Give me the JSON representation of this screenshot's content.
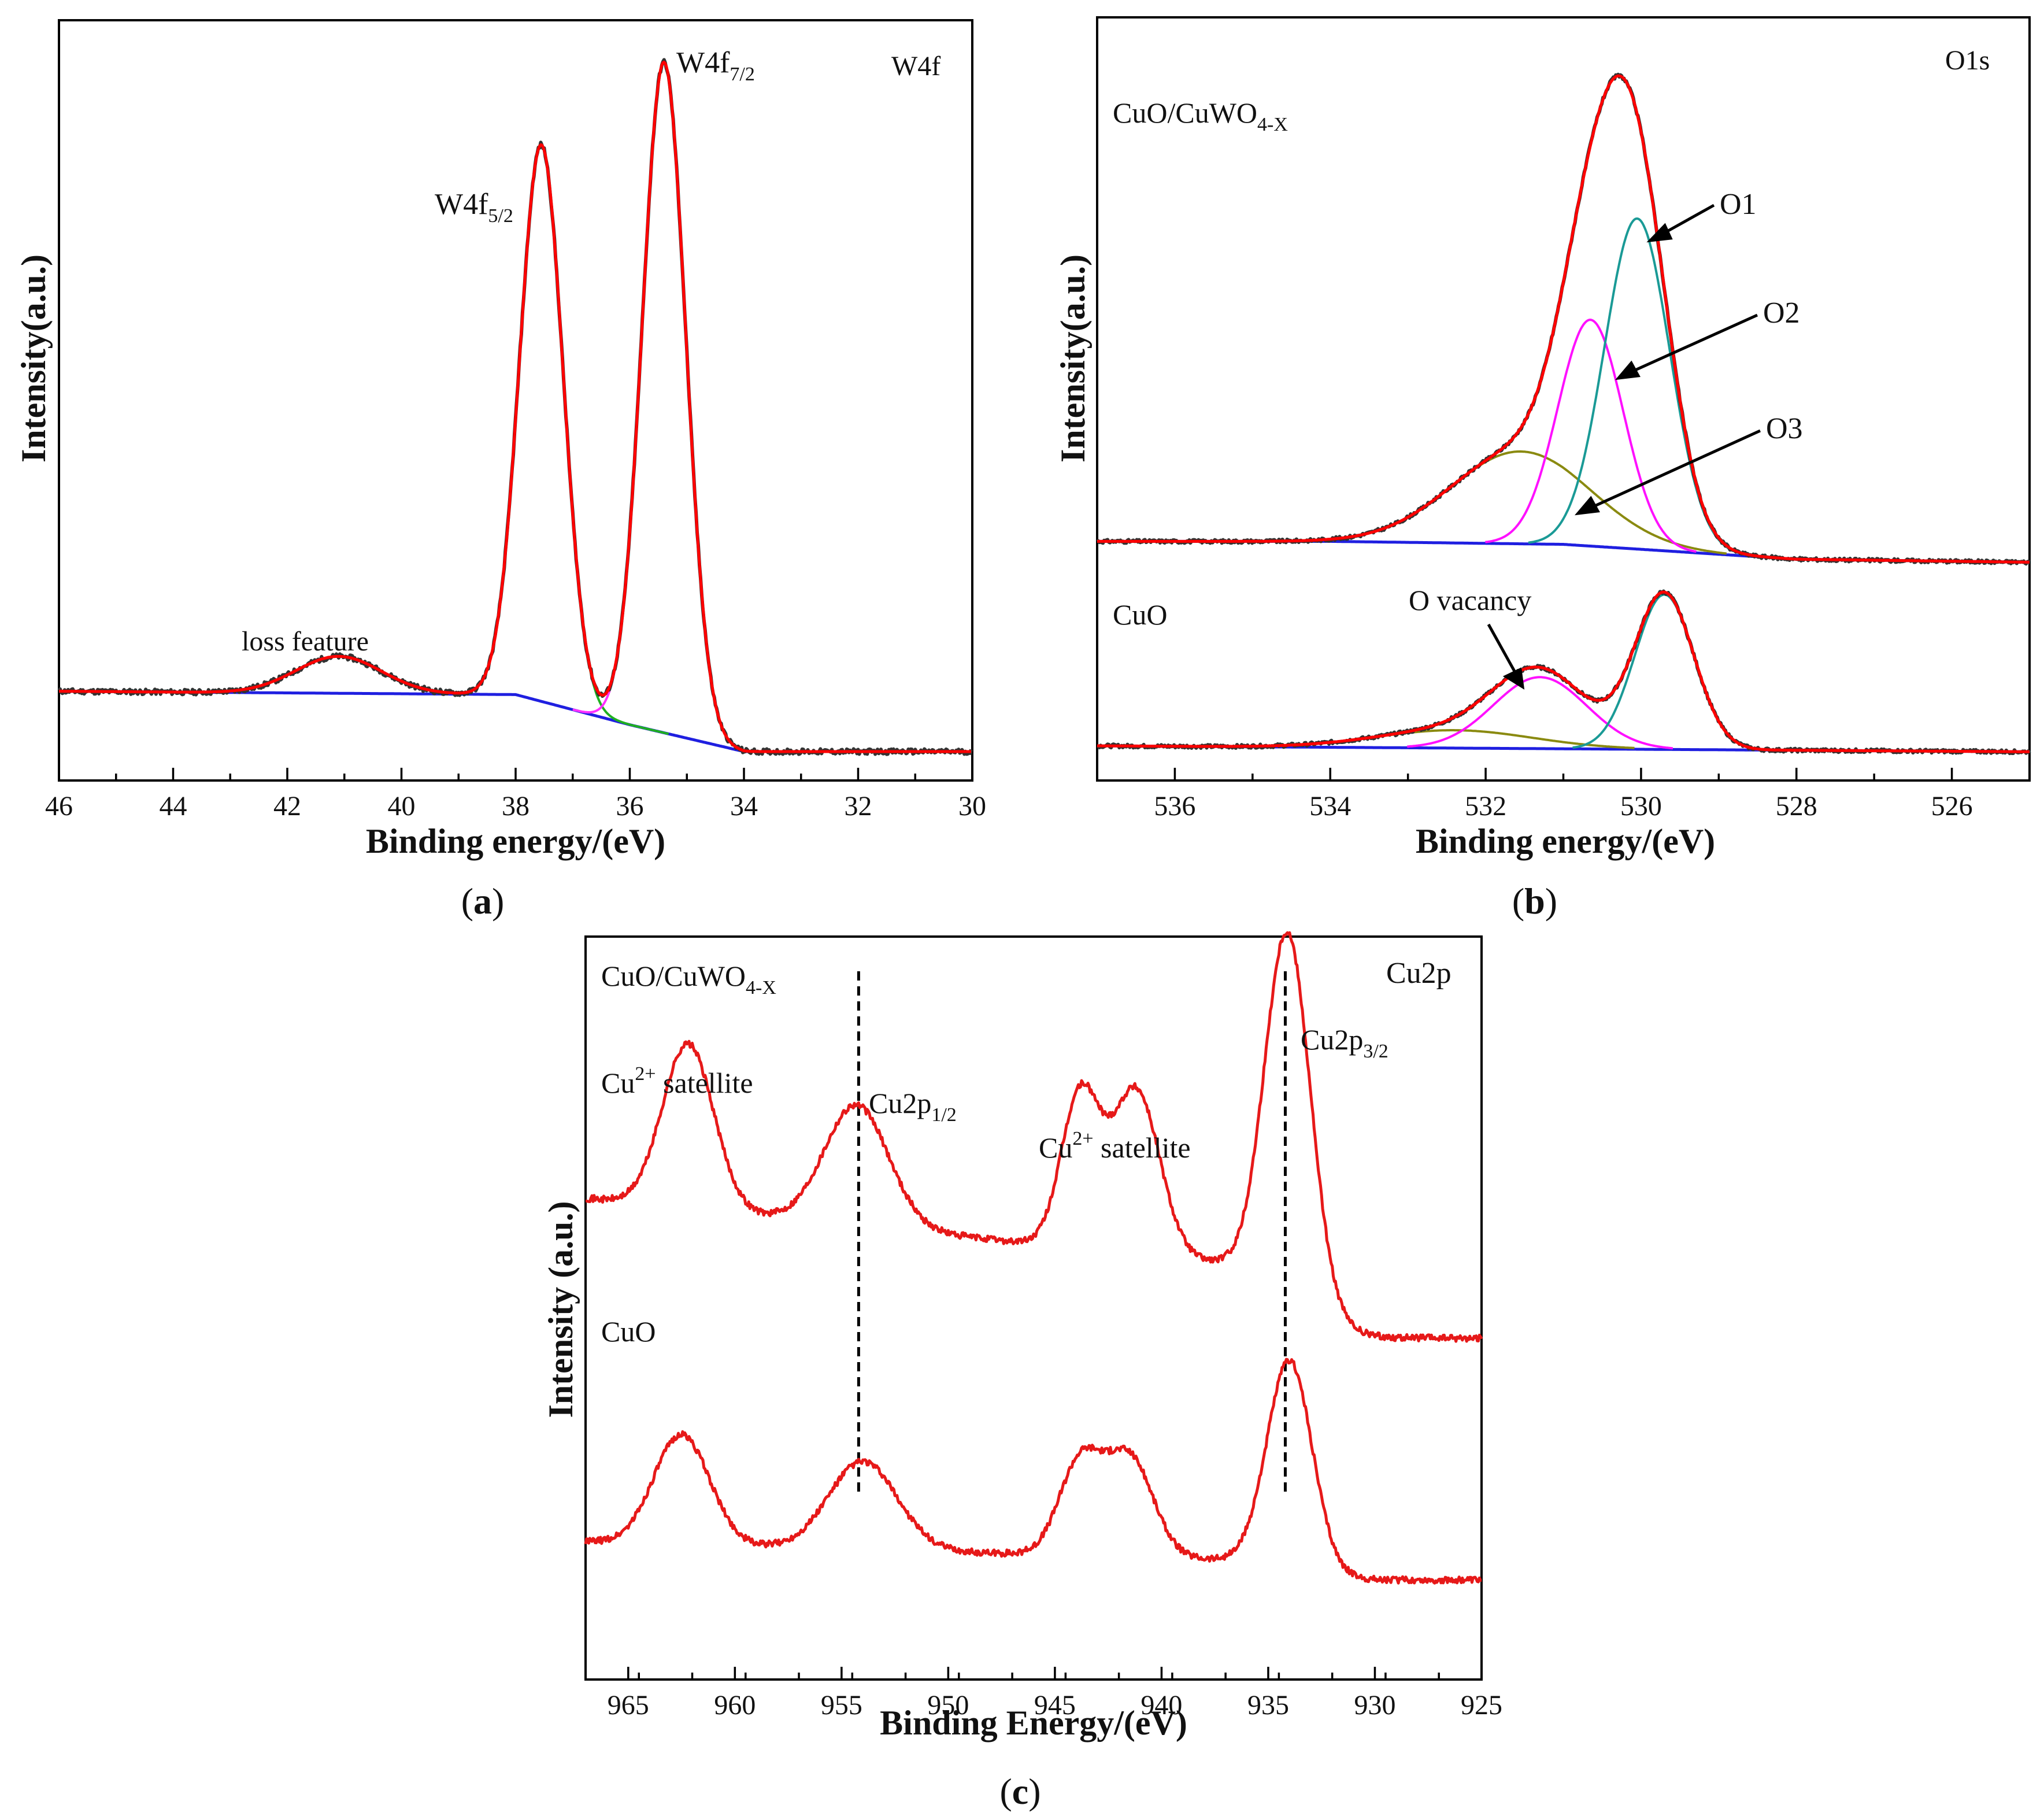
{
  "figure": {
    "panel_labels": [
      "a",
      "b",
      "c"
    ]
  },
  "colors": {
    "fit": "#ff0000",
    "raw": "#333333",
    "background": "#1f1fe0",
    "w_peak_52": "#20b020",
    "w_peak_72": "#ff30ff",
    "o1": "#1a9a96",
    "o2": "#ff10ff",
    "o3": "#8a8a10",
    "cu_line": "#e61919",
    "dash": "#000000"
  },
  "chart_data": [
    {
      "id": "a",
      "type": "line",
      "title": "W4f",
      "xlabel": "Binding energy/(eV)",
      "ylabel": "Intensity(a.u.)",
      "xlim": [
        46,
        30
      ],
      "ylim": [
        0,
        1
      ],
      "xticks": [
        46,
        44,
        42,
        40,
        38,
        36,
        34,
        32,
        30
      ],
      "annotations": {
        "peak_52_main": "W4f",
        "peak_52_sub": "5/2",
        "peak_72_main": "W4f",
        "peak_72_sub": "7/2",
        "loss": "loss feature"
      },
      "background": {
        "points": [
          [
            46,
            0.09
          ],
          [
            38,
            0.085
          ],
          [
            36,
            0.04
          ],
          [
            34,
            0.0
          ],
          [
            30,
            0.0
          ]
        ]
      },
      "peaks": {
        "loss_feature": {
          "center": 41.1,
          "height": 0.055,
          "sigma": 0.75
        },
        "w4f_5_2": {
          "center": 37.55,
          "height": 0.83,
          "sigma": 0.38
        },
        "w4f_7_2": {
          "center": 35.4,
          "height": 1.0,
          "sigma": 0.38
        }
      }
    },
    {
      "id": "b",
      "type": "line",
      "title": "O1s",
      "xlabel": "Binding energy/(eV)",
      "ylabel": "Intensity(a.u.)",
      "xlim": [
        537,
        525
      ],
      "ylim": [
        0,
        1
      ],
      "xticks": [
        536,
        534,
        532,
        530,
        528,
        526
      ],
      "series_labels": {
        "top_main": "CuO/CuWO",
        "top_sub": "4-X",
        "bottom": "CuO"
      },
      "annotations": {
        "o1": "O1",
        "o2": "O2",
        "o3": "O3",
        "vacancy": "O vacancy"
      },
      "spectra": [
        {
          "name": "CuO/CuWO4-X",
          "baseline": [
            [
              537,
              0.12
            ],
            [
              534,
              0.12
            ],
            [
              531,
              0.115
            ],
            [
              528,
              0.09
            ],
            [
              525,
              0.085
            ]
          ],
          "components": {
            "O1": {
              "center": 530.05,
              "height": 0.555,
              "sigma": 0.42
            },
            "O2": {
              "center": 530.65,
              "height": 0.38,
              "sigma": 0.42
            },
            "O3": {
              "center": 531.55,
              "height": 0.155,
              "sigma": 0.9
            }
          }
        },
        {
          "name": "CuO",
          "baseline": [
            [
              537,
              0.0
            ],
            [
              525,
              -0.01
            ]
          ],
          "components": {
            "O1": {
              "center": 529.7,
              "height": 0.26,
              "sigma": 0.38
            },
            "O2": {
              "center": 531.3,
              "height": 0.12,
              "sigma": 0.6
            },
            "O3": {
              "center": 532.4,
              "height": 0.03,
              "sigma": 1.0
            }
          }
        }
      ]
    },
    {
      "id": "c",
      "type": "line",
      "title": "Cu2p",
      "xlabel": "Binding Energy/(eV)",
      "ylabel": "Intensity (a.u.)",
      "xlim": [
        967,
        925
      ],
      "ylim": [
        0,
        1
      ],
      "xticks": [
        965,
        960,
        955,
        950,
        945,
        940,
        935,
        930,
        925
      ],
      "series_labels": {
        "top_main": "CuO/CuWO",
        "top_sub": "4-X",
        "bottom": "CuO"
      },
      "annotations": {
        "sat_left_main": "Cu",
        "sat_left_sup": "2+",
        "sat_left_rest": " satellite",
        "p12_main": "Cu2p",
        "p12_sub": "1/2",
        "sat_mid_main": "Cu",
        "sat_mid_sup": "2+",
        "sat_mid_rest": " satellite",
        "p32_main": "Cu2p",
        "p32_sub": "3/2"
      },
      "reference_lines": [
        954.2,
        934.2
      ],
      "spectra": [
        {
          "name": "CuO/CuWO4-X",
          "baseline_left": 0.6,
          "baseline_right": 0.09,
          "peaks": [
            {
              "center": 962.2,
              "height": 0.3,
              "sigma": 1.2
            },
            {
              "center": 954.3,
              "height": 0.22,
              "sigma": 1.5
            },
            {
              "center": 943.8,
              "height": 0.28,
              "sigma": 0.9
            },
            {
              "center": 941.2,
              "height": 0.3,
              "sigma": 1.1
            },
            {
              "center": 934.1,
              "height": 0.63,
              "sigma": 1.05
            }
          ]
        },
        {
          "name": "CuO",
          "baseline_left": 0.2,
          "baseline_right": 0.06,
          "peaks": [
            {
              "center": 962.5,
              "height": 0.2,
              "sigma": 1.3
            },
            {
              "center": 954.0,
              "height": 0.16,
              "sigma": 1.6
            },
            {
              "center": 943.8,
              "height": 0.17,
              "sigma": 1.0
            },
            {
              "center": 941.5,
              "height": 0.18,
              "sigma": 1.1
            },
            {
              "center": 934.0,
              "height": 0.37,
              "sigma": 1.05
            }
          ]
        }
      ]
    }
  ]
}
